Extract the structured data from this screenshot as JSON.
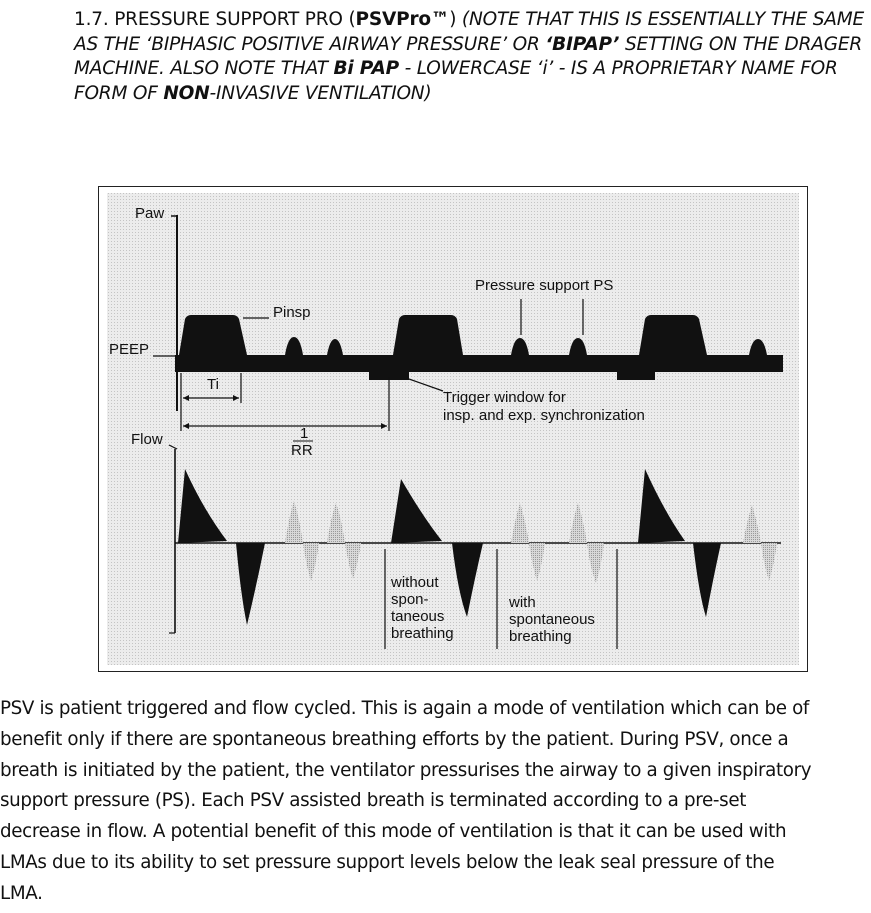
{
  "heading": {
    "number": "1.7.",
    "title_prefix": "PRESSURE SUPPORT PRO (",
    "abbr": "PSVPro™",
    "title_suffix": ")",
    "note_open": "(",
    "note_part1": "NOTE THAT THIS IS ESSENTIALLY THE SAME AS THE ‘BIPHASIC POSITIVE AIRWAY PRESSURE’ OR ",
    "note_bipap": "‘BIPAP’",
    "note_part2": " SETTING ON THE DRAGER MACHINE. ALSO NOTE THAT ",
    "note_bipap2": "Bi PAP",
    "note_part3": " - LOWERCASE ‘i’ - IS A PROPRIETARY NAME FOR FORM OF ",
    "note_non": "NON",
    "note_part4": "-INVASIVE VENTILATION)"
  },
  "figure": {
    "labels": {
      "paw": "Paw",
      "peep": "PEEP",
      "pinsp": "Pinsp",
      "pressure_support": "Pressure support PS",
      "ti": "Ti",
      "rr_num": "1",
      "rr_den": "RR",
      "trigger_line1": "Trigger window for",
      "trigger_line2": "insp. and exp. synchronization",
      "flow": "Flow",
      "without_1": "without",
      "without_2": "spon-",
      "without_3": "taneous",
      "without_4": "breathing",
      "with_1": "with",
      "with_2": "spontaneous",
      "with_3": "breathing"
    }
  },
  "body": {
    "lines": [
      "PSV is patient triggered and flow cycled. This is again a mode of ventilation which can be of",
      "benefit only if there are spontaneous breathing efforts by the patient. During PSV, once a",
      "breath is initiated by the patient, the ventilator pressurises the airway to a given inspiratory",
      "support pressure (PS). Each PSV assisted breath is terminated according to a pre-set",
      "decrease in flow. A potential benefit of this mode of ventilation is that it can be used with",
      "LMAs due to its ability to set pressure support levels below the leak seal pressure of the",
      "LMA."
    ]
  },
  "colors": {
    "ink": "#111111",
    "gray_flow": "#b9b9b9",
    "panel": "#e9e9e9"
  }
}
